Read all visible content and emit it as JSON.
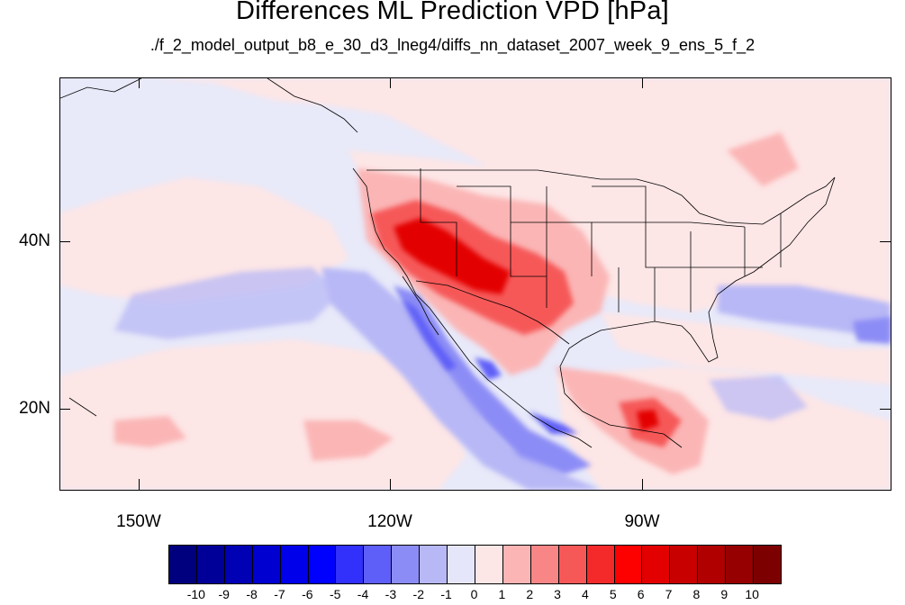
{
  "figure": {
    "title": "Differences ML Prediction VPD [hPa]",
    "subtitle": "./f_2_model_output_b8_e_30_d3_lneg4/diffs_nn_dataset_2007_week_9_ens_5_f_2"
  },
  "map": {
    "projection": "cylindrical equidistant",
    "lon_range": [
      -159.5,
      -60.8
    ],
    "lat_range": [
      10.0,
      59.0
    ],
    "background_color": "#e8e9f9",
    "lat_axis": {
      "labels": [
        "40N",
        "20N"
      ],
      "values": [
        40,
        20
      ]
    },
    "lon_axis": {
      "labels": [
        "150W",
        "120W",
        "90W"
      ],
      "values": [
        -150,
        -120,
        -90
      ]
    }
  },
  "colorbar": {
    "tick_labels": [
      "-10",
      "-9",
      "-8",
      "-7",
      "-6",
      "-5",
      "-4",
      "-3",
      "-2",
      "-1",
      "0",
      "1",
      "2",
      "3",
      "4",
      "5",
      "6",
      "7",
      "8",
      "9",
      "10"
    ],
    "colors": [
      "#00007f",
      "#000099",
      "#0000b5",
      "#0000d1",
      "#0000ea",
      "#0000ff",
      "#3131fb",
      "#5e5ef8",
      "#8c8cf6",
      "#b8b8f6",
      "#e6e6fa",
      "#fde6e6",
      "#fbb5b5",
      "#f88686",
      "#f65858",
      "#f42a2a",
      "#fd0000",
      "#e30000",
      "#c90000",
      "#b00000",
      "#970000",
      "#7d0000"
    ]
  }
}
